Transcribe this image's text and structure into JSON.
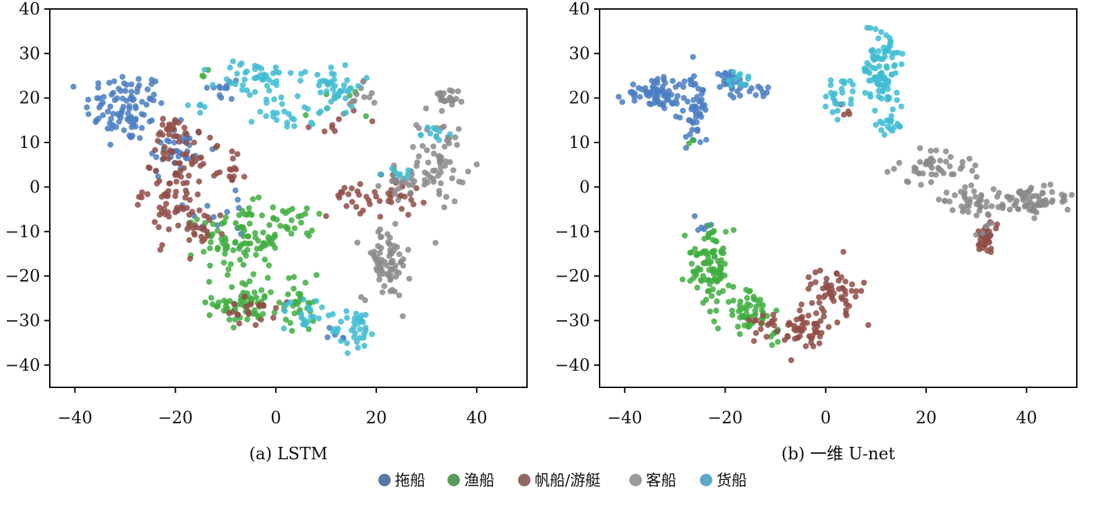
{
  "figure": {
    "legend_placement": "bottom-center"
  },
  "chart_data": [
    {
      "type": "scatter",
      "title": "",
      "caption": "(a) LSTM",
      "xlabel": "",
      "ylabel": "",
      "xlim": [
        -45,
        50
      ],
      "ylim": [
        -45,
        40
      ],
      "xticks": [
        -40,
        -20,
        0,
        20,
        40
      ],
      "yticks": [
        -40,
        -30,
        -20,
        -10,
        0,
        10,
        20,
        30,
        40
      ],
      "xtick_labels": [
        "−40",
        "−20",
        "0",
        "20",
        "40"
      ],
      "ytick_labels": [
        "−40",
        "−30",
        "−20",
        "−10",
        "0",
        "10",
        "20",
        "30",
        "40"
      ],
      "clusters": [
        {
          "series": "拖船",
          "center": [
            -30,
            18
          ],
          "spread": [
            5,
            5
          ],
          "n": 95
        },
        {
          "series": "拖船",
          "center": [
            -20,
            8
          ],
          "spread": [
            4,
            4
          ],
          "n": 35
        },
        {
          "series": "拖船",
          "center": [
            -10,
            22
          ],
          "spread": [
            3,
            2
          ],
          "n": 12
        },
        {
          "series": "拖船",
          "center": [
            -10,
            -5
          ],
          "spread": [
            5,
            4
          ],
          "n": 12
        },
        {
          "series": "拖船",
          "center": [
            12,
            -33
          ],
          "spread": [
            2,
            2
          ],
          "n": 5
        },
        {
          "series": "渔船",
          "center": [
            -7,
            -12
          ],
          "spread": [
            5,
            5
          ],
          "n": 95
        },
        {
          "series": "渔船",
          "center": [
            -6,
            -26
          ],
          "spread": [
            4,
            3
          ],
          "n": 65
        },
        {
          "series": "渔船",
          "center": [
            5,
            -26
          ],
          "spread": [
            2,
            4
          ],
          "n": 30
        },
        {
          "series": "渔船",
          "center": [
            3,
            -8
          ],
          "spread": [
            3,
            3
          ],
          "n": 22
        },
        {
          "series": "渔船",
          "center": [
            12,
            18
          ],
          "spread": [
            4,
            3
          ],
          "n": 6
        },
        {
          "series": "渔船",
          "center": [
            -14,
            25
          ],
          "spread": [
            1,
            1
          ],
          "n": 3
        },
        {
          "series": "帆船/游艇",
          "center": [
            -20,
            0
          ],
          "spread": [
            4,
            7
          ],
          "n": 90
        },
        {
          "series": "帆船/游艇",
          "center": [
            -15,
            -10
          ],
          "spread": [
            3,
            3
          ],
          "n": 20
        },
        {
          "series": "帆船/游艇",
          "center": [
            -20,
            12
          ],
          "spread": [
            3,
            3
          ],
          "n": 25
        },
        {
          "series": "帆船/游艇",
          "center": [
            -9,
            5
          ],
          "spread": [
            2,
            3
          ],
          "n": 18
        },
        {
          "series": "帆船/游艇",
          "center": [
            -5,
            -28
          ],
          "spread": [
            3,
            2
          ],
          "n": 20
        },
        {
          "series": "帆船/游艇",
          "center": [
            20,
            -2
          ],
          "spread": [
            6,
            3
          ],
          "n": 45
        },
        {
          "series": "帆船/游艇",
          "center": [
            12,
            15
          ],
          "spread": [
            3,
            2
          ],
          "n": 8
        },
        {
          "series": "客船",
          "center": [
            33,
            6
          ],
          "spread": [
            3,
            6
          ],
          "n": 60
        },
        {
          "series": "客船",
          "center": [
            33,
            19
          ],
          "spread": [
            2,
            2
          ],
          "n": 22
        },
        {
          "series": "客船",
          "center": [
            22,
            -17
          ],
          "spread": [
            3,
            5
          ],
          "n": 70
        },
        {
          "series": "客船",
          "center": [
            26,
            1
          ],
          "spread": [
            3,
            2
          ],
          "n": 22
        },
        {
          "series": "客船",
          "center": [
            16,
            20
          ],
          "spread": [
            2,
            2
          ],
          "n": 12
        },
        {
          "series": "货船",
          "center": [
            -4,
            24
          ],
          "spread": [
            5,
            3
          ],
          "n": 45
        },
        {
          "series": "货船",
          "center": [
            11,
            23
          ],
          "spread": [
            4,
            3
          ],
          "n": 40
        },
        {
          "series": "货船",
          "center": [
            3,
            17
          ],
          "spread": [
            4,
            3
          ],
          "n": 25
        },
        {
          "series": "货船",
          "center": [
            16,
            -32
          ],
          "spread": [
            3,
            3
          ],
          "n": 35
        },
        {
          "series": "货船",
          "center": [
            6,
            -28
          ],
          "spread": [
            3,
            3
          ],
          "n": 20
        },
        {
          "series": "货船",
          "center": [
            31,
            12
          ],
          "spread": [
            2,
            1
          ],
          "n": 10
        },
        {
          "series": "货船",
          "center": [
            25,
            3
          ],
          "spread": [
            2,
            1
          ],
          "n": 8
        },
        {
          "series": "货船",
          "center": [
            -15,
            18
          ],
          "spread": [
            1,
            2
          ],
          "n": 5
        }
      ]
    },
    {
      "type": "scatter",
      "title": "",
      "caption": "(b) 一维 U-net",
      "xlabel": "",
      "ylabel": "",
      "xlim": [
        -45,
        50
      ],
      "ylim": [
        -45,
        40
      ],
      "xticks": [
        -40,
        -20,
        0,
        20,
        40
      ],
      "yticks": [
        -40,
        -30,
        -20,
        -10,
        0,
        10,
        20,
        30,
        40
      ],
      "xtick_labels": [
        "−40",
        "−20",
        "0",
        "20",
        "40"
      ],
      "ytick_labels": [
        "−40",
        "−30",
        "−20",
        "−10",
        "0",
        "10",
        "20",
        "30",
        "40"
      ],
      "clusters": [
        {
          "series": "拖船",
          "center": [
            -34,
            21
          ],
          "spread": [
            4,
            2
          ],
          "n": 70
        },
        {
          "series": "拖船",
          "center": [
            -26,
            17
          ],
          "spread": [
            2,
            5
          ],
          "n": 50
        },
        {
          "series": "拖船",
          "center": [
            -19,
            24
          ],
          "spread": [
            2,
            2
          ],
          "n": 30
        },
        {
          "series": "拖船",
          "center": [
            -14,
            21
          ],
          "spread": [
            2,
            1
          ],
          "n": 10
        },
        {
          "series": "拖船",
          "center": [
            -24,
            -9
          ],
          "spread": [
            2,
            1
          ],
          "n": 6
        },
        {
          "series": "渔船",
          "center": [
            -23,
            -18
          ],
          "spread": [
            3,
            5
          ],
          "n": 100
        },
        {
          "series": "渔船",
          "center": [
            -16,
            -28
          ],
          "spread": [
            3,
            3
          ],
          "n": 50
        },
        {
          "series": "渔船",
          "center": [
            -10,
            -33
          ],
          "spread": [
            1,
            2
          ],
          "n": 8
        },
        {
          "series": "渔船",
          "center": [
            -27,
            11
          ],
          "spread": [
            1,
            1
          ],
          "n": 2
        },
        {
          "series": "帆船/游艇",
          "center": [
            2,
            -23
          ],
          "spread": [
            3,
            3
          ],
          "n": 55
        },
        {
          "series": "帆船/游艇",
          "center": [
            -4,
            -32
          ],
          "spread": [
            3,
            3
          ],
          "n": 55
        },
        {
          "series": "帆船/游艇",
          "center": [
            32,
            -12
          ],
          "spread": [
            1,
            3
          ],
          "n": 35
        },
        {
          "series": "帆船/游艇",
          "center": [
            -12,
            -30
          ],
          "spread": [
            2,
            2
          ],
          "n": 15
        },
        {
          "series": "帆船/游艇",
          "center": [
            4,
            17
          ],
          "spread": [
            1,
            1
          ],
          "n": 4
        },
        {
          "series": "客船",
          "center": [
            23,
            4
          ],
          "spread": [
            5,
            3
          ],
          "n": 50
        },
        {
          "series": "客船",
          "center": [
            41,
            -3
          ],
          "spread": [
            5,
            2
          ],
          "n": 75
        },
        {
          "series": "客船",
          "center": [
            29,
            -3
          ],
          "spread": [
            3,
            2
          ],
          "n": 35
        },
        {
          "series": "客船",
          "center": [
            32,
            -9
          ],
          "spread": [
            1,
            1
          ],
          "n": 5
        },
        {
          "series": "货船",
          "center": [
            11,
            30
          ],
          "spread": [
            3,
            3
          ],
          "n": 45
        },
        {
          "series": "货船",
          "center": [
            11,
            23
          ],
          "spread": [
            2,
            3
          ],
          "n": 45
        },
        {
          "series": "货船",
          "center": [
            3,
            20
          ],
          "spread": [
            2,
            3
          ],
          "n": 25
        },
        {
          "series": "货船",
          "center": [
            13,
            14
          ],
          "spread": [
            2,
            2
          ],
          "n": 20
        },
        {
          "series": "货船",
          "center": [
            -18,
            24
          ],
          "spread": [
            2,
            1
          ],
          "n": 12
        }
      ]
    }
  ],
  "legend": {
    "entries": [
      {
        "label": "拖船",
        "color": "#4a7ec2"
      },
      {
        "label": "渔船",
        "color": "#3fae3f"
      },
      {
        "label": "帆船/游艇",
        "color": "#8f4e47"
      },
      {
        "label": "客船",
        "color": "#8a8a8a"
      },
      {
        "label": "货船",
        "color": "#3fbcd2"
      }
    ],
    "swatch_colors": [
      "#5878a8",
      "#5c9a5c",
      "#8f6a63",
      "#9a9a9a",
      "#5fa8c8"
    ]
  }
}
